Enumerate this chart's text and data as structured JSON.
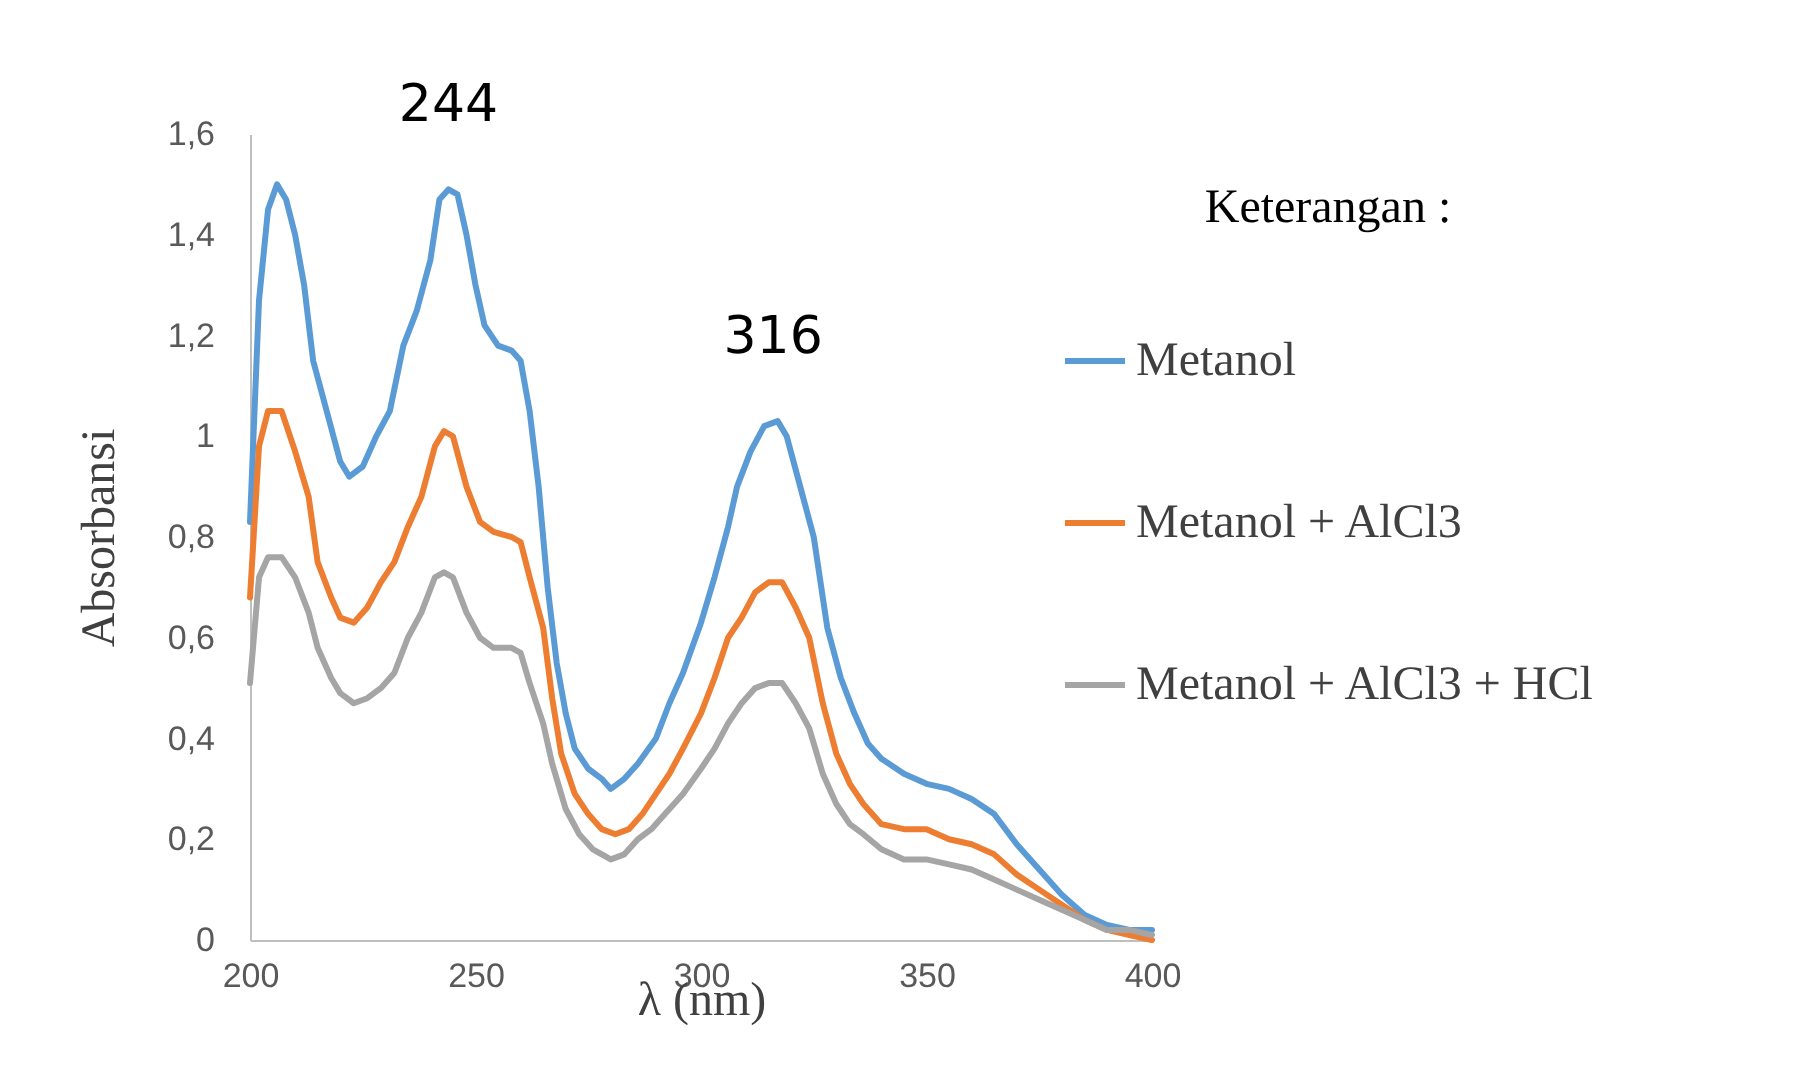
{
  "chart_data": {
    "type": "line",
    "xlabel": "λ (nm)",
    "ylabel": "Absorbansi",
    "legend_title": "Keterangan :",
    "legend": "right",
    "grid": false,
    "line_style": "solid",
    "marker": "none",
    "xlim": [
      200,
      400
    ],
    "xticks": [
      200,
      250,
      300,
      350,
      400
    ],
    "ylim": [
      0,
      1.6
    ],
    "yticks": [
      0,
      {
        "value": 0.2,
        "label": "0,2"
      },
      {
        "value": 0.4,
        "label": "0,4"
      },
      {
        "value": 0.6,
        "label": "0,6"
      },
      {
        "value": 0.8,
        "label": "0,8"
      },
      1,
      {
        "value": 1.2,
        "label": "1,2"
      },
      {
        "value": 1.4,
        "label": "1,4"
      },
      {
        "value": 1.6,
        "label": "1,6"
      }
    ],
    "annotations": [
      {
        "text": "244",
        "x": 244,
        "y": 1.49
      },
      {
        "text": "316",
        "x": 316,
        "y": 1.03
      }
    ],
    "series": [
      {
        "name": "Metanol",
        "color": "#5b9bd5",
        "x": [
          200,
          202,
          204,
          206,
          208,
          210,
          212,
          214,
          217,
          220,
          222,
          225,
          228,
          231,
          234,
          237,
          240,
          242,
          244,
          246,
          248,
          250,
          252,
          255,
          258,
          260,
          262,
          264,
          266,
          268,
          270,
          272,
          275,
          278,
          280,
          283,
          286,
          290,
          293,
          296,
          300,
          303,
          306,
          308,
          311,
          314,
          317,
          319,
          322,
          325,
          328,
          331,
          334,
          337,
          340,
          345,
          350,
          355,
          360,
          365,
          370,
          375,
          380,
          385,
          390,
          395,
          400
        ],
        "values": [
          0.83,
          1.27,
          1.45,
          1.5,
          1.47,
          1.4,
          1.3,
          1.15,
          1.05,
          0.95,
          0.92,
          0.94,
          1.0,
          1.05,
          1.18,
          1.25,
          1.35,
          1.47,
          1.49,
          1.48,
          1.4,
          1.3,
          1.22,
          1.18,
          1.17,
          1.15,
          1.05,
          0.9,
          0.7,
          0.55,
          0.45,
          0.38,
          0.34,
          0.32,
          0.3,
          0.32,
          0.35,
          0.4,
          0.47,
          0.53,
          0.63,
          0.72,
          0.82,
          0.9,
          0.97,
          1.02,
          1.03,
          1.0,
          0.9,
          0.8,
          0.62,
          0.52,
          0.45,
          0.39,
          0.36,
          0.33,
          0.31,
          0.3,
          0.28,
          0.25,
          0.19,
          0.14,
          0.09,
          0.05,
          0.03,
          0.02,
          0.02
        ]
      },
      {
        "name": "Metanol + AlCl3",
        "color": "#ed7d31",
        "x": [
          200,
          202,
          204,
          207,
          210,
          213,
          215,
          218,
          220,
          223,
          226,
          229,
          232,
          235,
          238,
          241,
          243,
          245,
          248,
          251,
          254,
          258,
          260,
          262,
          265,
          267,
          269,
          272,
          275,
          278,
          281,
          284,
          287,
          290,
          293,
          296,
          300,
          303,
          306,
          309,
          312,
          315,
          318,
          321,
          324,
          327,
          330,
          333,
          336,
          340,
          345,
          350,
          355,
          360,
          365,
          370,
          375,
          380,
          385,
          390,
          395,
          400
        ],
        "values": [
          0.68,
          0.98,
          1.05,
          1.05,
          0.97,
          0.88,
          0.75,
          0.68,
          0.64,
          0.63,
          0.66,
          0.71,
          0.75,
          0.82,
          0.88,
          0.98,
          1.01,
          1.0,
          0.9,
          0.83,
          0.81,
          0.8,
          0.79,
          0.72,
          0.62,
          0.48,
          0.37,
          0.29,
          0.25,
          0.22,
          0.21,
          0.22,
          0.25,
          0.29,
          0.33,
          0.38,
          0.45,
          0.52,
          0.6,
          0.64,
          0.69,
          0.71,
          0.71,
          0.66,
          0.6,
          0.47,
          0.37,
          0.31,
          0.27,
          0.23,
          0.22,
          0.22,
          0.2,
          0.19,
          0.17,
          0.13,
          0.1,
          0.07,
          0.04,
          0.02,
          0.01,
          0.0
        ]
      },
      {
        "name": "Metanol + AlCl3 + HCl",
        "color": "#a5a5a5",
        "x": [
          200,
          202,
          204,
          207,
          210,
          213,
          215,
          218,
          220,
          223,
          226,
          229,
          232,
          235,
          238,
          241,
          243,
          245,
          248,
          251,
          254,
          258,
          260,
          262,
          265,
          267,
          270,
          273,
          276,
          280,
          283,
          286,
          289,
          292,
          296,
          300,
          303,
          306,
          309,
          312,
          315,
          318,
          321,
          324,
          327,
          330,
          333,
          336,
          340,
          345,
          350,
          355,
          360,
          365,
          370,
          375,
          380,
          385,
          390,
          395,
          400
        ],
        "values": [
          0.51,
          0.72,
          0.76,
          0.76,
          0.72,
          0.65,
          0.58,
          0.52,
          0.49,
          0.47,
          0.48,
          0.5,
          0.53,
          0.6,
          0.65,
          0.72,
          0.73,
          0.72,
          0.65,
          0.6,
          0.58,
          0.58,
          0.57,
          0.51,
          0.43,
          0.35,
          0.26,
          0.21,
          0.18,
          0.16,
          0.17,
          0.2,
          0.22,
          0.25,
          0.29,
          0.34,
          0.38,
          0.43,
          0.47,
          0.5,
          0.51,
          0.51,
          0.47,
          0.42,
          0.33,
          0.27,
          0.23,
          0.21,
          0.18,
          0.16,
          0.16,
          0.15,
          0.14,
          0.12,
          0.1,
          0.08,
          0.06,
          0.04,
          0.02,
          0.02,
          0.01
        ]
      }
    ]
  }
}
